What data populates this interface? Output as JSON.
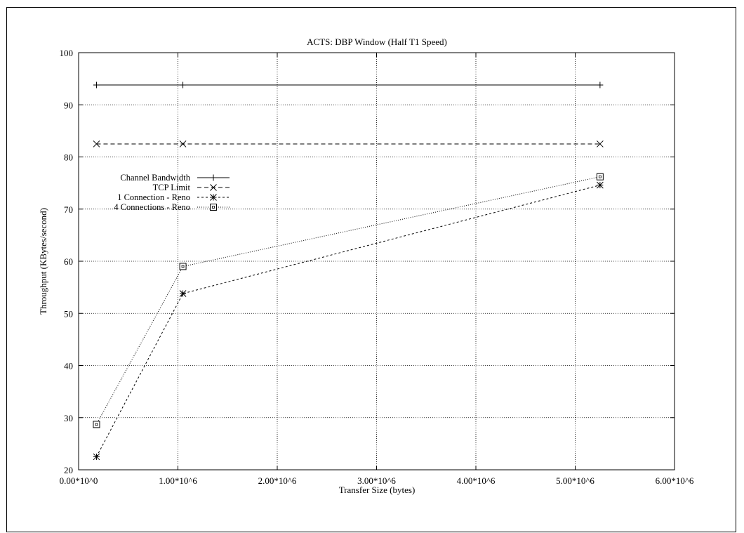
{
  "chart_data": {
    "type": "line",
    "title": "ACTS: DBP Window (Half T1 Speed)",
    "xlabel": "Transfer Size (bytes)",
    "ylabel": "Throughput (KBytes/second)",
    "xlim": [
      0,
      6000000
    ],
    "ylim": [
      20,
      100
    ],
    "x_ticks": [
      {
        "value": 0,
        "label": "0.00*10^0"
      },
      {
        "value": 1000000,
        "label": "1.00*10^6"
      },
      {
        "value": 2000000,
        "label": "2.00*10^6"
      },
      {
        "value": 3000000,
        "label": "3.00*10^6"
      },
      {
        "value": 4000000,
        "label": "4.00*10^6"
      },
      {
        "value": 5000000,
        "label": "5.00*10^6"
      },
      {
        "value": 6000000,
        "label": "6.00*10^6"
      }
    ],
    "y_ticks": [
      {
        "value": 20,
        "label": "20"
      },
      {
        "value": 30,
        "label": "30"
      },
      {
        "value": 40,
        "label": "40"
      },
      {
        "value": 50,
        "label": "50"
      },
      {
        "value": 60,
        "label": "60"
      },
      {
        "value": 70,
        "label": "70"
      },
      {
        "value": 80,
        "label": "80"
      },
      {
        "value": 90,
        "label": "90"
      },
      {
        "value": 100,
        "label": "100"
      }
    ],
    "grid": true,
    "legend_position": "upper-left",
    "series": [
      {
        "name": "Channel Bandwidth",
        "marker": "plus",
        "dash": "solid",
        "x": [
          180000,
          1050000,
          5250000
        ],
        "y": [
          93.8,
          93.8,
          93.8
        ]
      },
      {
        "name": "TCP Limit",
        "marker": "cross",
        "dash": "dashed",
        "x": [
          180000,
          1050000,
          5250000
        ],
        "y": [
          82.5,
          82.5,
          82.5
        ]
      },
      {
        "name": "1 Connection - Reno",
        "marker": "star",
        "dash": "short-dashed",
        "x": [
          180000,
          1050000,
          5250000
        ],
        "y": [
          22.5,
          53.8,
          74.6
        ]
      },
      {
        "name": "4 Connections - Reno",
        "marker": "square",
        "dash": "dotted",
        "x": [
          180000,
          1050000,
          5250000
        ],
        "y": [
          28.7,
          59.0,
          76.2
        ]
      }
    ]
  }
}
